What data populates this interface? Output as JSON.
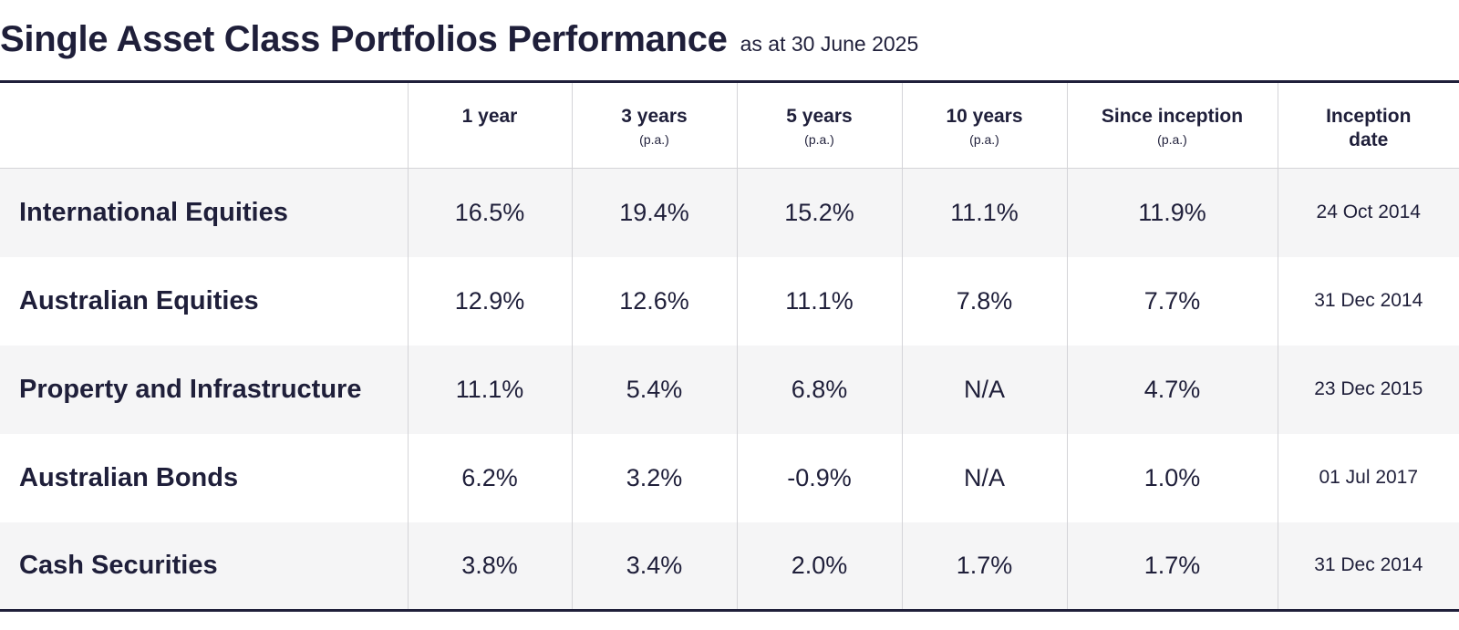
{
  "header": {
    "title": "Single Asset Class Portfolios Performance",
    "subtitle": "as at 30 June 2025"
  },
  "chart_data": {
    "type": "table",
    "title": "Single Asset Class Portfolios Performance",
    "subtitle": "as at 30 June 2025",
    "columns": [
      {
        "label": "1 year",
        "note": ""
      },
      {
        "label": "3 years",
        "note": "(p.a.)"
      },
      {
        "label": "5 years",
        "note": "(p.a.)"
      },
      {
        "label": "10 years",
        "note": "(p.a.)"
      },
      {
        "label": "Since inception",
        "note": "(p.a.)"
      },
      {
        "label": "Inception date",
        "note": ""
      }
    ],
    "rows": [
      {
        "name": "International Equities",
        "values": [
          "16.5%",
          "19.4%",
          "15.2%",
          "11.1%",
          "11.9%"
        ],
        "inception": "24 Oct 2014"
      },
      {
        "name": "Australian Equities",
        "values": [
          "12.9%",
          "12.6%",
          "11.1%",
          "7.8%",
          "7.7%"
        ],
        "inception": "31 Dec 2014"
      },
      {
        "name": "Property and Infrastructure",
        "values": [
          "11.1%",
          "5.4%",
          "6.8%",
          "N/A",
          "4.7%"
        ],
        "inception": "23 Dec 2015"
      },
      {
        "name": "Australian Bonds",
        "values": [
          "6.2%",
          "3.2%",
          "-0.9%",
          "N/A",
          "1.0%"
        ],
        "inception": "01 Jul 2017"
      },
      {
        "name": "Cash Securities",
        "values": [
          "3.8%",
          "3.4%",
          "2.0%",
          "1.7%",
          "1.7%"
        ],
        "inception": "31 Dec 2014"
      }
    ]
  },
  "colors": {
    "text": "#1f1f3a",
    "rule": "#1f1f3a",
    "gridline": "#d4d4d8",
    "row_shade": "#f5f5f6"
  }
}
